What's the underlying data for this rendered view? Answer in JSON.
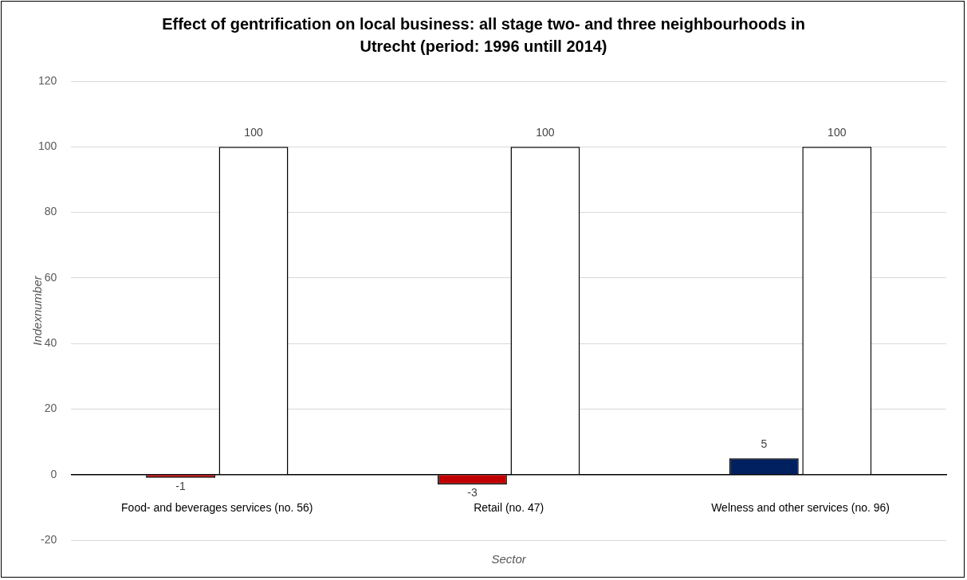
{
  "chart_data": {
    "type": "bar",
    "title": "Effect of gentrification on local business: all stage two- and three neighbourhoods in Utrecht (period: 1996 untill 2014)",
    "xlabel": "Sector",
    "ylabel": "Indexnumber",
    "categories": [
      "Food- and beverages services (no. 56)",
      "Retail (no. 47)",
      "Welness and other services (no. 96)"
    ],
    "series": [
      {
        "colors": [
          "#c00000",
          "#c00000",
          "#002060"
        ],
        "values": [
          -1,
          -3,
          5
        ]
      },
      {
        "color": "#ffffff",
        "values": [
          100,
          100,
          100
        ]
      }
    ],
    "ylim": [
      -20,
      120
    ],
    "yticks": [
      -20,
      0,
      20,
      40,
      60,
      80,
      100,
      120
    ],
    "grid": "y",
    "data_labels": true,
    "legend": false
  }
}
